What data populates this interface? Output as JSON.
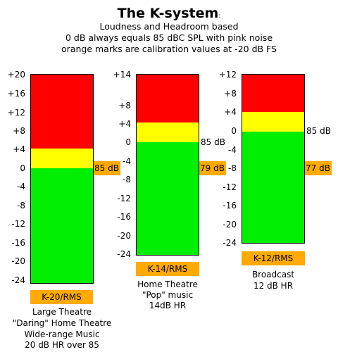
{
  "header": {
    "title": "The K-system",
    "title_mark": ":",
    "lines": [
      "Loudness and Headroom based",
      "0 dB always equals 85 dBC SPL with pink noise",
      "orange marks are calibration values at -20 dB FS"
    ]
  },
  "meters": [
    {
      "ticks": [
        "+20",
        "+16",
        "+12",
        "+8",
        "+4",
        "0",
        "-4",
        "-8",
        "-12",
        "-16",
        "-20",
        "-24"
      ],
      "calibration": "85 dB",
      "name": "K-20/RMS",
      "description": [
        "Large Theatre",
        "\"Daring\" Home Theatre",
        "Wide-range Music",
        "20 dB HR over 85"
      ]
    },
    {
      "ticks": [
        "+14",
        "+8",
        "+4",
        "0",
        "-4",
        "-8",
        "-12",
        "-16",
        "-20",
        "-24"
      ],
      "reference": "85 dB",
      "calibration": "79 dB",
      "name": "K-14/RMS",
      "description": [
        "Home Theatre",
        "\"Pop\" music",
        "14dB HR"
      ]
    },
    {
      "ticks": [
        "+12",
        "+8",
        "+4",
        "0",
        "-4",
        "-8",
        "-12",
        "-16",
        "-20",
        "-24"
      ],
      "reference": "85 dB",
      "calibration": "77 dB",
      "name": "K-12/RMS",
      "description": [
        "Broadcast",
        "12 dB HR"
      ]
    }
  ],
  "colors": {
    "headroom": "#ff0000",
    "caution": "#ffff00",
    "nominal": "#00ee00",
    "calibration_mark": "#ffaa00"
  }
}
